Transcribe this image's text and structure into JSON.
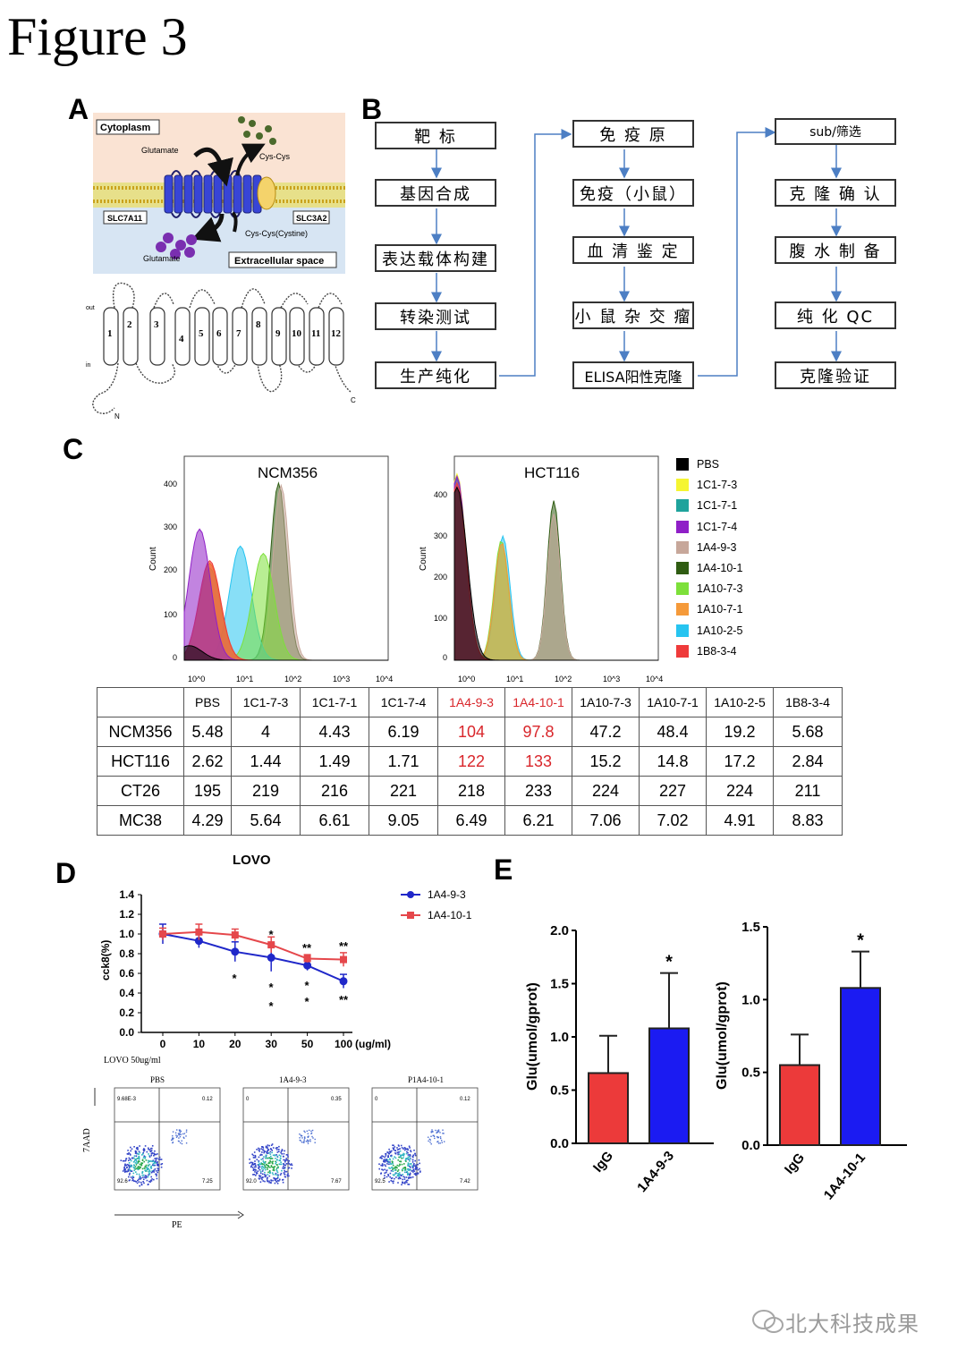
{
  "figure_title": "Figure 3",
  "panels": {
    "a": "A",
    "b": "B",
    "c": "C",
    "d": "D",
    "e": "E"
  },
  "panel_a": {
    "cytoplasm": "Cytoplasm",
    "glutamate_top": "Glutamate",
    "cys_cys": "Cys-Cys",
    "slc7a11": "SLC7A11",
    "slc3a2": "SLC3A2",
    "cystine": "Cys-Cys(Cystine)",
    "glutamate_bottom": "Glutamate",
    "extracellular": "Extracellular space",
    "topology_segments": [
      "1",
      "2",
      "3",
      "4",
      "5",
      "6",
      "7",
      "8",
      "9",
      "10",
      "11",
      "12"
    ],
    "out_label": "out",
    "in_label": "in",
    "n_label": "N",
    "c_label": "C"
  },
  "panel_b": {
    "col1": [
      "靶 标",
      "基因合成",
      "表达载体构建",
      "转染测试",
      "生产纯化"
    ],
    "col2": [
      "免 疫 原",
      "免疫（小鼠）",
      "血 清 鉴 定",
      "小 鼠 杂 交 瘤",
      "ELISA阳性克隆"
    ],
    "col3": [
      "sub/筛选",
      "克 隆 确 认",
      "腹 水 制 备",
      "纯 化 QC",
      "克隆验证"
    ]
  },
  "chart_data": [
    {
      "type": "area",
      "title": "NCM356",
      "ylabel": "Count",
      "ylim": [
        0,
        400
      ],
      "yticks": [
        "0",
        "100",
        "200",
        "300",
        "400"
      ],
      "xticks": [
        "10^0",
        "10^1",
        "10^2",
        "10^3",
        "10^4"
      ],
      "xscale": "log",
      "peak_positions_log10": [
        {
          "series": "PBS",
          "peak": 0.1,
          "height": 30
        },
        {
          "series": "1C1-7-3",
          "peak": 0.5,
          "height": 200
        },
        {
          "series": "1C1-7-1",
          "peak": 0.5,
          "height": 190
        },
        {
          "series": "1C1-7-4",
          "peak": 0.3,
          "height": 270
        },
        {
          "series": "1A4-9-3",
          "peak": 1.9,
          "height": 360
        },
        {
          "series": "1A4-10-1",
          "peak": 1.85,
          "height": 365
        },
        {
          "series": "1A10-7-3",
          "peak": 1.55,
          "height": 220
        },
        {
          "series": "1A10-7-1",
          "peak": 0.5,
          "height": 200
        },
        {
          "series": "1A10-2-5",
          "peak": 1.1,
          "height": 235
        },
        {
          "series": "1B8-3-4",
          "peak": 0.5,
          "height": 205
        }
      ]
    },
    {
      "type": "area",
      "title": "HCT116",
      "ylabel": "Count",
      "ylim": [
        0,
        440
      ],
      "yticks": [
        "0",
        "100",
        "200",
        "300",
        "400"
      ],
      "xticks": [
        "10^0",
        "10^1",
        "10^2",
        "10^3",
        "10^4"
      ],
      "xscale": "log"
    },
    {
      "type": "table",
      "columns": [
        "",
        "PBS",
        "1C1-7-3",
        "1C1-7-1",
        "1C1-7-4",
        "1A4-9-3",
        "1A4-10-1",
        "1A10-7-3",
        "1A10-7-1",
        "1A10-2-5",
        "1B8-3-4"
      ],
      "highlight_columns": [
        "1A4-9-3",
        "1A4-10-1"
      ],
      "rows": [
        [
          "NCM356",
          "5.48",
          "4",
          "4.43",
          "6.19",
          "104",
          "97.8",
          "47.2",
          "48.4",
          "19.2",
          "5.68"
        ],
        [
          "HCT116",
          "2.62",
          "1.44",
          "1.49",
          "1.71",
          "122",
          "133",
          "15.2",
          "14.8",
          "17.2",
          "2.84"
        ],
        [
          "CT26",
          "195",
          "219",
          "216",
          "221",
          "218",
          "233",
          "224",
          "227",
          "224",
          "211"
        ],
        [
          "MC38",
          "4.29",
          "5.64",
          "6.61",
          "9.05",
          "6.49",
          "6.21",
          "7.06",
          "7.02",
          "4.91",
          "8.83"
        ]
      ]
    },
    {
      "type": "line",
      "title": "LOVO",
      "ylabel": "cck8(%)",
      "xunit": "(ug/ml)",
      "x": [
        "0",
        "10",
        "20",
        "30",
        "50",
        "100"
      ],
      "ylim": [
        0,
        1.4
      ],
      "yticks": [
        "0.0",
        "0.2",
        "0.4",
        "0.6",
        "0.8",
        "1.0",
        "1.2",
        "1.4"
      ],
      "series": [
        {
          "name": "1A4-9-3",
          "values": [
            1.0,
            0.93,
            0.82,
            0.76,
            0.68,
            0.52
          ],
          "err": [
            0.1,
            0.07,
            0.1,
            0.14,
            0.05,
            0.07
          ]
        },
        {
          "name": "1A4-10-1",
          "values": [
            1.0,
            1.02,
            0.99,
            0.89,
            0.75,
            0.74
          ],
          "err": [
            0.06,
            0.08,
            0.06,
            0.08,
            0.04,
            0.07
          ]
        }
      ]
    },
    {
      "type": "scatter",
      "title": "LOVO 50ug/ml",
      "panels": [
        {
          "name": "PBS",
          "q1": "9.68E-3",
          "q2": "0.12",
          "q3": "7.25",
          "q4": "92.6"
        },
        {
          "name": "1A4-9-3",
          "q1": "0",
          "q2": "0.35",
          "q3": "7.67",
          "q4": "92.0"
        },
        {
          "name": "P1A4-10-1",
          "q1": "0",
          "q2": "0.12",
          "q3": "7.42",
          "q4": "92.5"
        }
      ],
      "xlabel": "PE",
      "ylabel": "7AAD"
    },
    {
      "type": "bar",
      "ylabel": "Glu(umol/gprot)",
      "categories": [
        "IgG",
        "1A4-9-3"
      ],
      "values": [
        0.66,
        1.08
      ],
      "err": [
        0.35,
        0.52
      ],
      "ylim": [
        0,
        2.0
      ],
      "yticks": [
        "0.0",
        "0.5",
        "1.0",
        "1.5",
        "2.0"
      ],
      "sig": [
        "",
        "*"
      ]
    },
    {
      "type": "bar",
      "ylabel": "Glu(umol/gprot)",
      "categories": [
        "IgG",
        "1A4-10-1"
      ],
      "values": [
        0.55,
        1.08
      ],
      "err": [
        0.21,
        0.25
      ],
      "ylim": [
        0,
        1.5
      ],
      "yticks": [
        "0.0",
        "0.5",
        "1.0",
        "1.5"
      ],
      "sig": [
        "",
        "*"
      ]
    }
  ],
  "hist_legend": [
    {
      "name": "PBS",
      "color": "#000000"
    },
    {
      "name": "1C1-7-3",
      "color": "#f5f531"
    },
    {
      "name": "1C1-7-1",
      "color": "#1fa39c"
    },
    {
      "name": "1C1-7-4",
      "color": "#8f1fc7"
    },
    {
      "name": "1A4-9-3",
      "color": "#c7a79a"
    },
    {
      "name": "1A4-10-1",
      "color": "#2f5c12"
    },
    {
      "name": "1A10-7-3",
      "color": "#7de03a"
    },
    {
      "name": "1A10-7-1",
      "color": "#f59a3a"
    },
    {
      "name": "1A10-2-5",
      "color": "#27c4f0"
    },
    {
      "name": "1B8-3-4",
      "color": "#ef3b3b"
    }
  ],
  "line_stars": {
    "s20": "*",
    "s30_top": "*",
    "s30_mid": "*",
    "s30_bot": "*",
    "s50_top": "**",
    "s50_mid": "*",
    "s50_bot": "*",
    "s100_top": "**",
    "s100_bot": "**"
  },
  "watermark": "北大科技成果"
}
